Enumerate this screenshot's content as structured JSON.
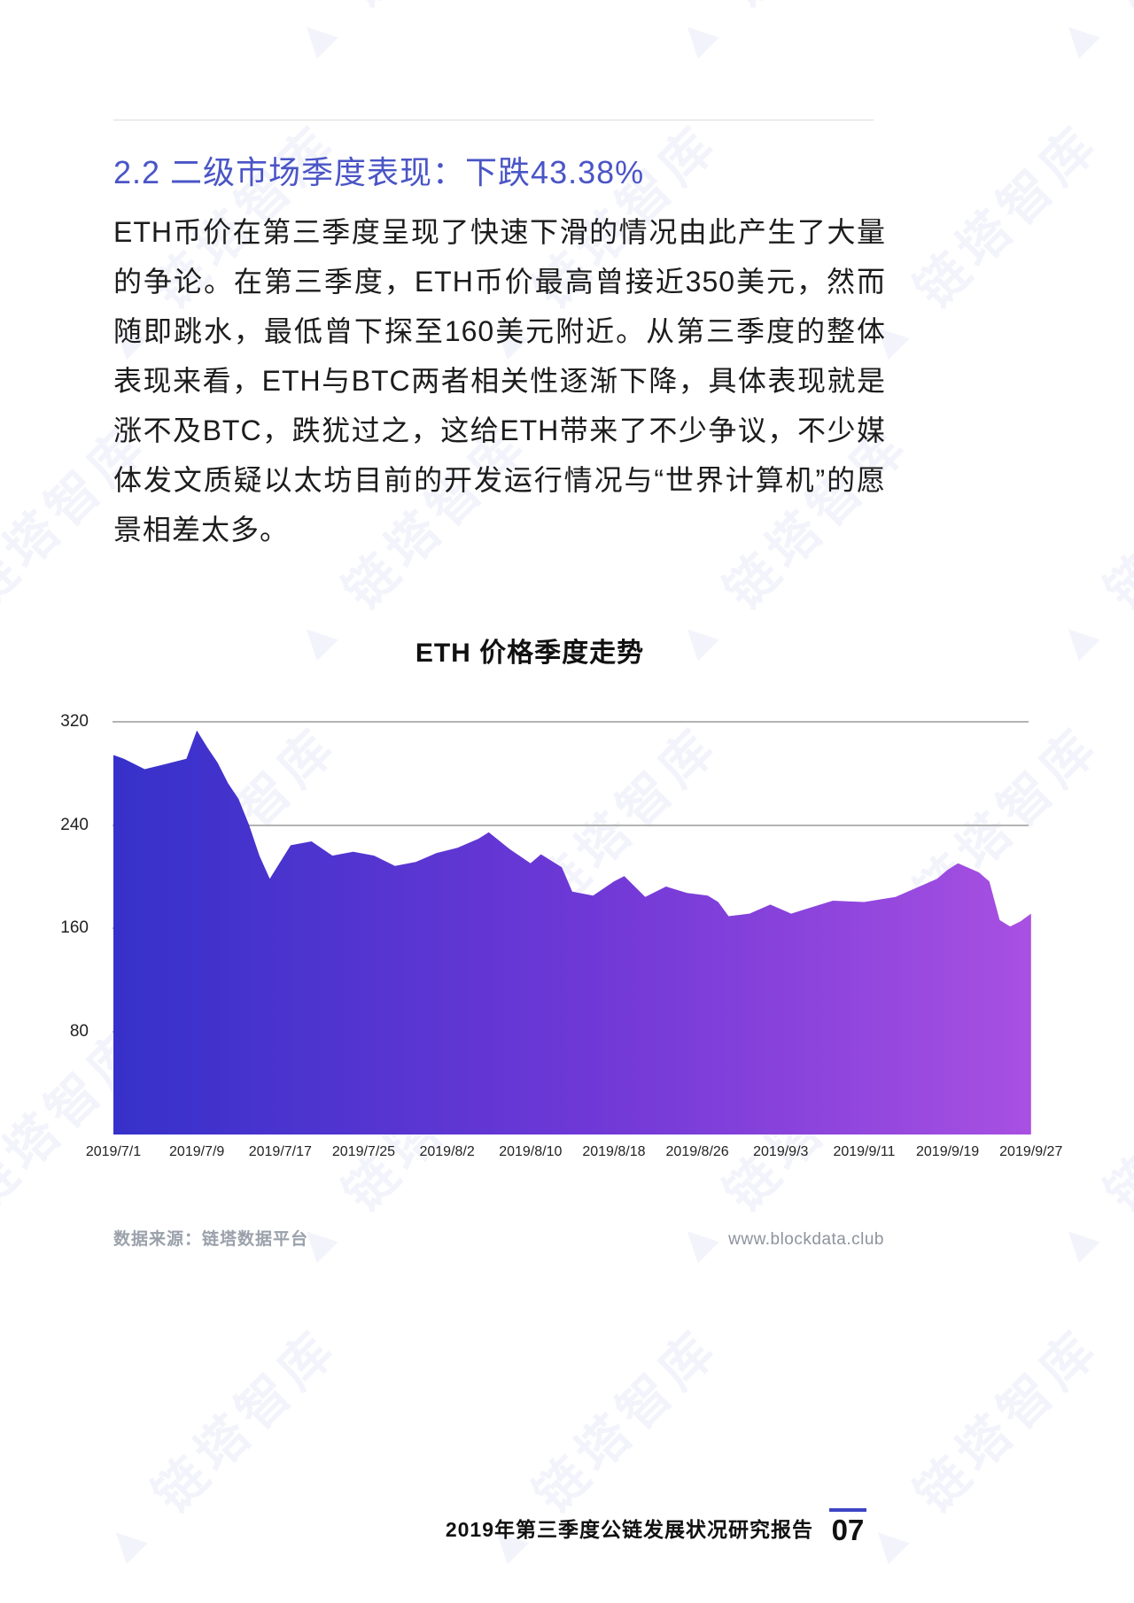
{
  "page": {
    "heading": "2.2 二级市场季度表现：下跌43.38%",
    "paragraph": "ETH币价在第三季度呈现了快速下滑的情况由此产生了大量的争论。在第三季度，ETH币价最高曾接近350美元，然而随即跳水，最低曾下探至160美元附近。从第三季度的整体表现来看，ETH与BTC两者相关性逐渐下降，具体表现就是涨不及BTC，跌犹过之，这给ETH带来了不少争议，不少媒体发文质疑以太坊目前的开发运行情况与“世界计算机”的愿景相差太多。",
    "watermark_text": "链塔智库"
  },
  "chart_data": {
    "type": "area",
    "title": "ETH 价格季度走势",
    "xlabel": "",
    "ylabel": "",
    "ylim": [
      0,
      352
    ],
    "y_ticks": [
      320,
      240,
      160,
      80
    ],
    "x_tick_labels": [
      "2019/7/1",
      "2019/7/9",
      "2019/7/17",
      "2019/7/25",
      "2019/8/2",
      "2019/8/10",
      "2019/8/18",
      "2019/8/26",
      "2019/9/3",
      "2019/9/11",
      "2019/9/19",
      "2019/9/27"
    ],
    "x_tick_days": [
      0,
      8,
      16,
      24,
      32,
      40,
      48,
      56,
      64,
      72,
      80,
      88
    ],
    "grid": "horizontal",
    "legend": "none",
    "gradient": {
      "left": "#3631ca",
      "mid": "#6f38d6",
      "right": "#a850e2"
    },
    "points": [
      [
        0,
        "2019/7/1",
        294
      ],
      [
        1,
        "2019/7/2",
        291
      ],
      [
        3,
        "2019/7/4",
        283
      ],
      [
        5,
        "2019/7/6",
        287
      ],
      [
        7,
        "2019/7/8",
        291
      ],
      [
        8,
        "2019/7/9",
        313
      ],
      [
        9,
        "2019/7/10",
        300
      ],
      [
        10,
        "2019/7/11",
        288
      ],
      [
        11,
        "2019/7/12",
        272
      ],
      [
        12,
        "2019/7/13",
        260
      ],
      [
        13,
        "2019/7/14",
        240
      ],
      [
        14,
        "2019/7/15",
        216
      ],
      [
        15,
        "2019/7/16",
        198
      ],
      [
        17,
        "2019/7/18",
        224
      ],
      [
        19,
        "2019/7/20",
        227
      ],
      [
        21,
        "2019/7/22",
        216
      ],
      [
        23,
        "2019/7/24",
        219
      ],
      [
        25,
        "2019/7/26",
        216
      ],
      [
        27,
        "2019/7/28",
        208
      ],
      [
        29,
        "2019/7/30",
        211
      ],
      [
        31,
        "2019/8/1",
        218
      ],
      [
        33,
        "2019/8/3",
        222
      ],
      [
        35,
        "2019/8/5",
        229
      ],
      [
        36,
        "2019/8/6",
        234
      ],
      [
        38,
        "2019/8/8",
        221
      ],
      [
        40,
        "2019/8/10",
        210
      ],
      [
        41,
        "2019/8/11",
        217
      ],
      [
        43,
        "2019/8/13",
        207
      ],
      [
        44,
        "2019/8/14",
        188
      ],
      [
        46,
        "2019/8/16",
        185
      ],
      [
        48,
        "2019/8/18",
        196
      ],
      [
        49,
        "2019/8/19",
        200
      ],
      [
        51,
        "2019/8/21",
        184
      ],
      [
        53,
        "2019/8/23",
        192
      ],
      [
        55,
        "2019/8/25",
        187
      ],
      [
        57,
        "2019/8/27",
        185
      ],
      [
        58,
        "2019/8/28",
        180
      ],
      [
        59,
        "2019/8/29",
        169
      ],
      [
        61,
        "2019/8/31",
        171
      ],
      [
        63,
        "2019/9/2",
        178
      ],
      [
        65,
        "2019/9/4",
        171
      ],
      [
        67,
        "2019/9/6",
        176
      ],
      [
        69,
        "2019/9/8",
        181
      ],
      [
        72,
        "2019/9/11",
        180
      ],
      [
        75,
        "2019/9/14",
        184
      ],
      [
        77,
        "2019/9/16",
        191
      ],
      [
        79,
        "2019/9/18",
        198
      ],
      [
        80,
        "2019/9/19",
        205
      ],
      [
        81,
        "2019/9/20",
        210
      ],
      [
        83,
        "2019/9/22",
        203
      ],
      [
        84,
        "2019/9/23",
        196
      ],
      [
        85,
        "2019/9/24",
        166
      ],
      [
        86,
        "2019/9/25",
        161
      ],
      [
        87,
        "2019/9/26",
        165
      ],
      [
        88,
        "2019/9/27",
        171
      ]
    ]
  },
  "footer": {
    "source": "数据来源：链塔数据平台",
    "site": "www.blockdata.club"
  },
  "page_footer": {
    "report_title": "2019年第三季度公链发展状况研究报告",
    "page_number": "07"
  },
  "colors": {
    "heading": "#4a55c6",
    "gridline": "#b3b3b3",
    "accent_bar": "#3c45c4"
  }
}
